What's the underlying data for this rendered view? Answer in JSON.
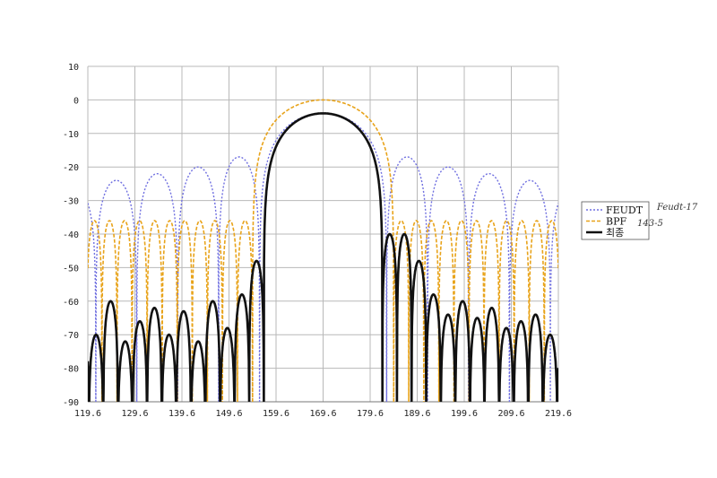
{
  "chart_data": {
    "type": "line",
    "xlim": [
      119.6,
      219.6
    ],
    "ylim": [
      -90,
      10
    ],
    "x_ticks": [
      "119.6",
      "129.6",
      "139.6",
      "149.6",
      "159.6",
      "169.6",
      "179.6",
      "189.6",
      "199.6",
      "209.6",
      "219.6"
    ],
    "y_ticks": [
      "10",
      "0",
      "-10",
      "-20",
      "-30",
      "-40",
      "-50",
      "-60",
      "-70",
      "-80",
      "-90"
    ],
    "grid": true,
    "legend_position": "right",
    "series": [
      {
        "name": "FEUDT",
        "style": "dotted",
        "color": "#6f6fe0",
        "main_lobe": {
          "center": 169.6,
          "peak": -4,
          "null_half_width": 13.5
        },
        "sidelobe_peaks_db": [
          -28,
          -27,
          -26,
          -24,
          -22,
          -20,
          -17,
          -17,
          -20,
          -22,
          -24,
          -26,
          -28,
          -30,
          -32
        ],
        "sidelobe_period": 8.7
      },
      {
        "name": "BPF",
        "style": "dashed",
        "color": "#e8a31a",
        "main_lobe": {
          "center": 169.6,
          "peak": 0,
          "null_half_width": 15
        },
        "sidelobe_peaks_db": [
          -36,
          -36,
          -36,
          -36,
          -36,
          -36,
          -36,
          -36,
          -36,
          -36,
          -36,
          -36,
          -36,
          -36,
          -36,
          -36
        ],
        "sidelobe_period": 3.2
      },
      {
        "name": "최종",
        "style": "solid",
        "color": "#111111",
        "main_lobe": {
          "center": 169.6,
          "peak": -4,
          "null_half_width": 12.6
        },
        "sidelobe_peaks_db": [
          -72,
          -65,
          -68,
          -64,
          -70,
          -60,
          -72,
          -66,
          -62,
          -70,
          -63,
          -72,
          -60,
          -68,
          -58,
          -48,
          -40,
          -40,
          -48,
          -58,
          -64,
          -60,
          -65,
          -62,
          -68,
          -66,
          -64,
          -70,
          -66,
          -72,
          -68,
          -66
        ],
        "sidelobe_period": 3.1
      }
    ]
  },
  "notes": [
    "Feudt-17",
    "143-5"
  ]
}
